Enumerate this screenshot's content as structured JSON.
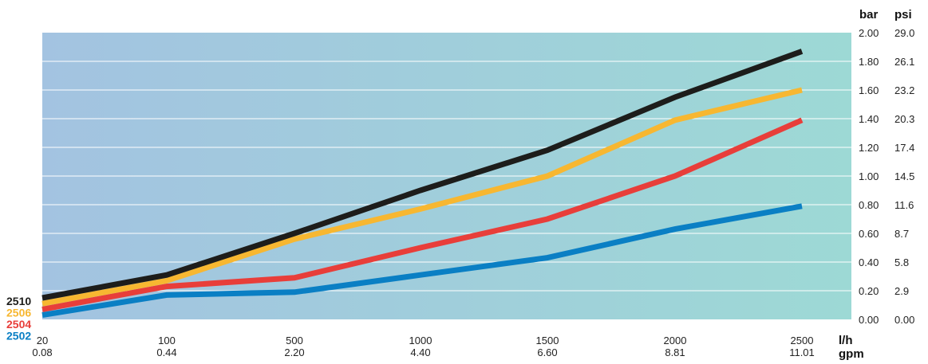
{
  "chart_data": {
    "type": "line",
    "x_categories_lh": [
      "20",
      "100",
      "500",
      "1000",
      "1500",
      "2000",
      "2500"
    ],
    "x_categories_gpm": [
      "0.08",
      "0.44",
      "2.20",
      "4.40",
      "6.60",
      "8.81",
      "11.01"
    ],
    "x_units": {
      "primary": "l/h",
      "secondary": "gpm"
    },
    "y_units": {
      "primary": "bar",
      "secondary": "psi"
    },
    "ylim": [
      0,
      2.0
    ],
    "y_ticks_bar": [
      "0.00",
      "0.20",
      "0.40",
      "0.60",
      "0.80",
      "1.00",
      "1.20",
      "1.40",
      "1.60",
      "1.80",
      "2.00"
    ],
    "y_ticks_psi": [
      "0.00",
      "2.9",
      "5.8",
      "8.7",
      "11.6",
      "14.5",
      "17.4",
      "20.3",
      "23.2",
      "26.1",
      "29.0"
    ],
    "grid": "horizontal",
    "series": [
      {
        "name": "2502",
        "color": "#0a7fc4",
        "values": [
          0.03,
          0.17,
          0.19,
          0.31,
          0.43,
          0.63,
          0.79
        ]
      },
      {
        "name": "2504",
        "color": "#e83e3a",
        "values": [
          0.07,
          0.23,
          0.29,
          0.5,
          0.7,
          1.0,
          1.39
        ]
      },
      {
        "name": "2506",
        "color": "#f7b731",
        "values": [
          0.11,
          0.27,
          0.56,
          0.77,
          1.0,
          1.39,
          1.6
        ]
      },
      {
        "name": "2510",
        "color": "#1d1d1b",
        "values": [
          0.15,
          0.31,
          0.6,
          0.9,
          1.18,
          1.55,
          1.87
        ]
      }
    ],
    "legend_order": [
      "2510",
      "2506",
      "2504",
      "2502"
    ],
    "legend_placement": "left"
  }
}
